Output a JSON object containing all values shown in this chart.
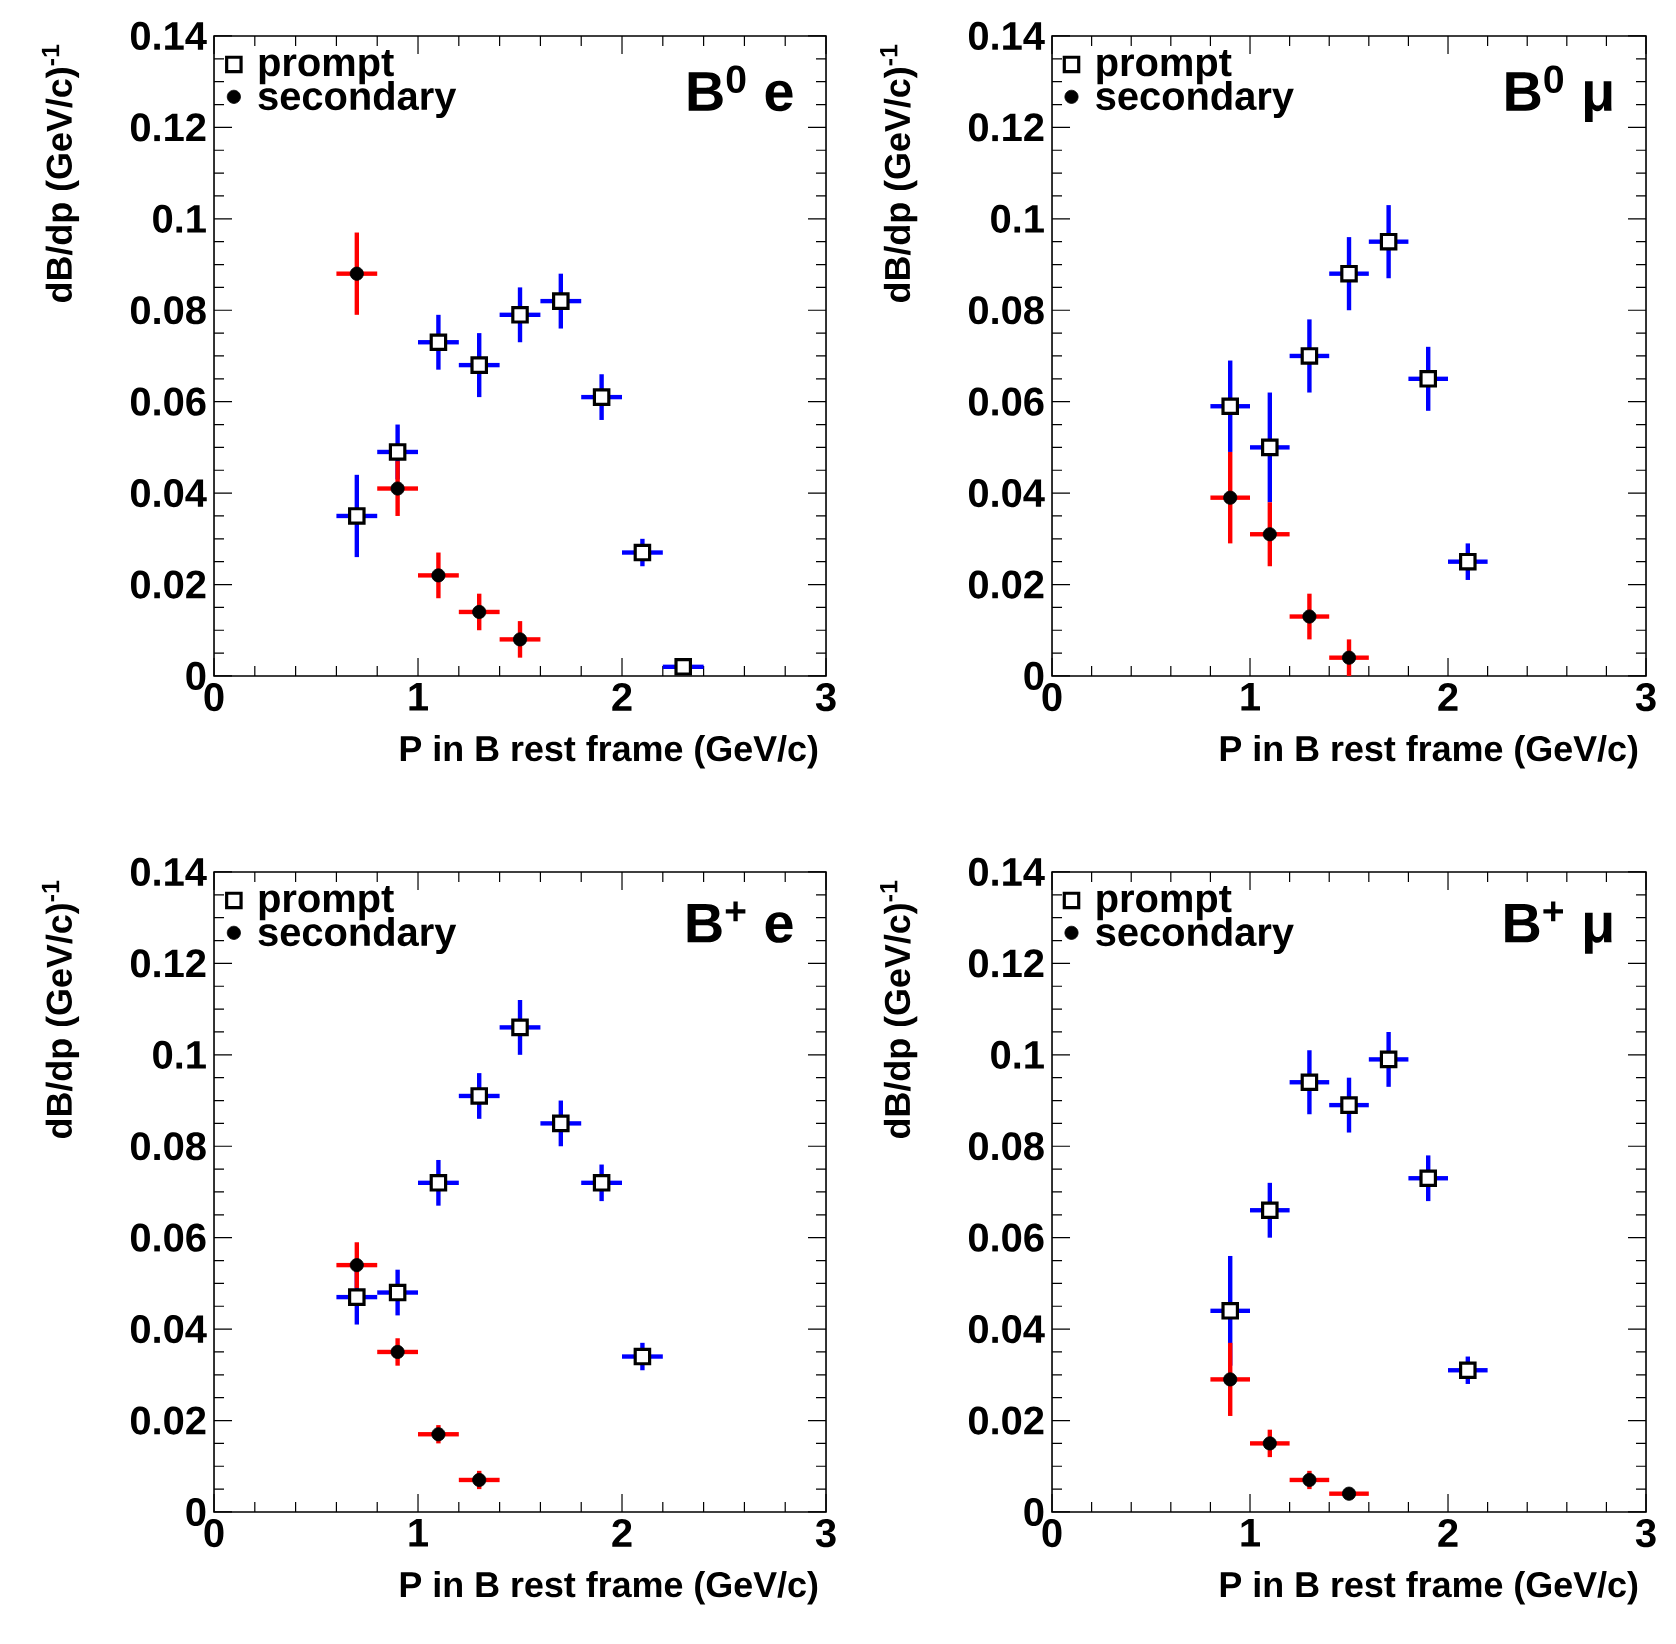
{
  "chart_data": [
    {
      "type": "scatter",
      "xlabel": "P in B rest frame (GeV/c)",
      "ylabel": "dB/dp (GeV/c)$^{-1}$",
      "annotations": [
        "B$^{0}$ e"
      ],
      "xlim": [
        0,
        3
      ],
      "xticks": [
        0,
        1,
        2,
        3
      ],
      "ylim": [
        0,
        0.14
      ],
      "yticks": [
        0,
        0.02,
        0.04,
        0.06,
        0.08,
        0.1,
        0.12,
        0.14
      ],
      "legend": "top left",
      "series": [
        {
          "name": "prompt",
          "color": "#000000",
          "marker": "square",
          "x": [
            0.7,
            0.9,
            1.1,
            1.3,
            1.5,
            1.7,
            1.9,
            2.1,
            2.3
          ],
          "values": [
            0.035,
            0.049,
            0.073,
            0.068,
            0.079,
            0.082,
            0.061,
            0.027,
            0.002
          ],
          "errors": [
            0.009,
            0.006,
            0.006,
            0.007,
            0.006,
            0.006,
            0.005,
            0.003,
            null
          ],
          "xerrors": [
            0.1,
            0.1,
            0.1,
            0.1,
            0.1,
            0.1,
            0.1,
            0.1,
            0.1
          ]
        },
        {
          "name": "secondary",
          "color": "#000000",
          "marker": "circle",
          "x": [
            0.7,
            0.9,
            1.1,
            1.3,
            1.5
          ],
          "values": [
            0.088,
            0.041,
            0.022,
            0.014,
            0.008
          ],
          "errors": [
            0.009,
            0.006,
            0.005,
            0.004,
            0.004
          ],
          "xerrors": [
            0.1,
            0.1,
            0.1,
            0.1,
            0.1
          ]
        }
      ]
    },
    {
      "type": "scatter",
      "xlabel": "P in B rest frame (GeV/c)",
      "ylabel": "dB/dp (GeV/c)$^{-1}$",
      "annotations": [
        "B$^{0}$ μ"
      ],
      "xlim": [
        0,
        3
      ],
      "xticks": [
        0,
        1,
        2,
        3
      ],
      "ylim": [
        0,
        0.14
      ],
      "yticks": [
        0,
        0.02,
        0.04,
        0.06,
        0.08,
        0.1,
        0.12,
        0.14
      ],
      "legend": "top left",
      "series": [
        {
          "name": "prompt",
          "color": "#000000",
          "marker": "square",
          "x": [
            0.9,
            1.1,
            1.3,
            1.5,
            1.7,
            1.9,
            2.1
          ],
          "values": [
            0.059,
            0.05,
            0.07,
            0.088,
            0.095,
            0.065,
            0.025
          ],
          "errors": [
            0.01,
            0.012,
            0.008,
            0.008,
            0.008,
            0.007,
            0.004
          ],
          "xerrors": [
            0.1,
            0.1,
            0.1,
            0.1,
            0.1,
            0.1,
            0.1
          ]
        },
        {
          "name": "secondary",
          "color": "#000000",
          "marker": "circle",
          "x": [
            0.9,
            1.1,
            1.3,
            1.5
          ],
          "values": [
            0.039,
            0.031,
            0.013,
            0.004
          ],
          "errors": [
            0.01,
            0.007,
            0.005,
            0.004
          ],
          "xerrors": [
            0.1,
            0.1,
            0.1,
            0.1
          ]
        }
      ]
    },
    {
      "type": "scatter",
      "xlabel": "P in B rest frame (GeV/c)",
      "ylabel": "dB/dp (GeV/c)$^{-1}$",
      "annotations": [
        "B$^{+}$ e"
      ],
      "xlim": [
        0,
        3
      ],
      "xticks": [
        0,
        1,
        2,
        3
      ],
      "ylim": [
        0,
        0.14
      ],
      "yticks": [
        0,
        0.02,
        0.04,
        0.06,
        0.08,
        0.1,
        0.12,
        0.14
      ],
      "legend": "top left",
      "series": [
        {
          "name": "prompt",
          "color": "#000000",
          "marker": "square",
          "x": [
            0.7,
            0.9,
            1.1,
            1.3,
            1.5,
            1.7,
            1.9,
            2.1
          ],
          "values": [
            0.047,
            0.048,
            0.072,
            0.091,
            0.106,
            0.085,
            0.072,
            0.034
          ],
          "errors": [
            0.006,
            0.005,
            0.005,
            0.005,
            0.006,
            0.005,
            0.004,
            0.003
          ],
          "xerrors": [
            0.1,
            0.1,
            0.1,
            0.1,
            0.1,
            0.1,
            0.1,
            0.1
          ]
        },
        {
          "name": "secondary",
          "color": "#000000",
          "marker": "circle",
          "x": [
            0.7,
            0.9,
            1.1,
            1.3
          ],
          "values": [
            0.054,
            0.035,
            0.017,
            0.007
          ],
          "errors": [
            0.005,
            0.003,
            0.002,
            0.002
          ],
          "xerrors": [
            0.1,
            0.1,
            0.1,
            0.1
          ]
        }
      ]
    },
    {
      "type": "scatter",
      "xlabel": "P in B rest frame (GeV/c)",
      "ylabel": "dB/dp (GeV/c)$^{-1}$",
      "annotations": [
        "B$^{+}$ μ"
      ],
      "xlim": [
        0,
        3
      ],
      "xticks": [
        0,
        1,
        2,
        3
      ],
      "ylim": [
        0,
        0.14
      ],
      "yticks": [
        0,
        0.02,
        0.04,
        0.06,
        0.08,
        0.1,
        0.12,
        0.14
      ],
      "legend": "top left",
      "series": [
        {
          "name": "prompt",
          "color": "#000000",
          "marker": "square",
          "x": [
            0.9,
            1.1,
            1.3,
            1.5,
            1.7,
            1.9,
            2.1
          ],
          "values": [
            0.044,
            0.066,
            0.094,
            0.089,
            0.099,
            0.073,
            0.031
          ],
          "errors": [
            0.012,
            0.006,
            0.007,
            0.006,
            0.006,
            0.005,
            0.003
          ],
          "xerrors": [
            0.1,
            0.1,
            0.1,
            0.1,
            0.1,
            0.1,
            0.1
          ]
        },
        {
          "name": "secondary",
          "color": "#000000",
          "marker": "circle",
          "x": [
            0.9,
            1.1,
            1.3,
            1.5
          ],
          "values": [
            0.029,
            0.015,
            0.007,
            0.004
          ],
          "errors": [
            0.008,
            0.003,
            0.002,
            null
          ],
          "xerrors": [
            0.1,
            0.1,
            0.1,
            0.1
          ]
        }
      ]
    }
  ]
}
